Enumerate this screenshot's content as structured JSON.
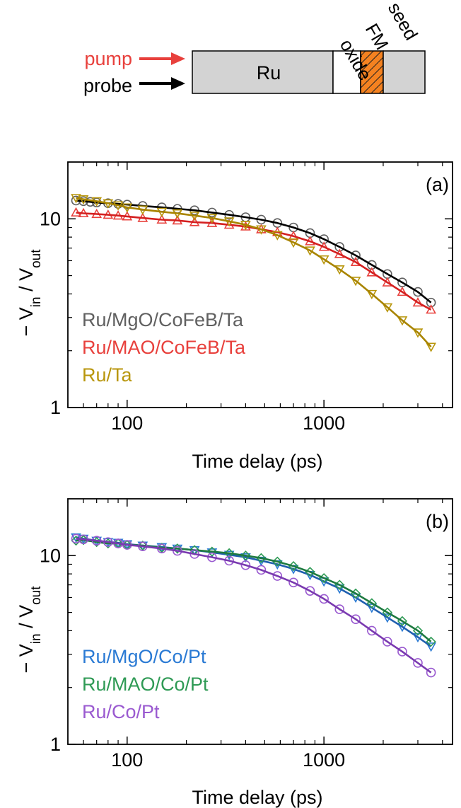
{
  "schematic": {
    "pump_label": "pump",
    "probe_label": "probe",
    "layer_ru": "Ru",
    "layer_oxide": "oxide",
    "layer_fm": "FM",
    "layer_seed": "seed",
    "pump_color": "#e8403c",
    "probe_color": "#000000",
    "fm_color": "#f58220"
  },
  "chart_data": [
    {
      "type": "scatter",
      "panel_label": "(a)",
      "xlabel": "Time delay (ps)",
      "ylabel_main": "− V",
      "ylabel_sub1": "in",
      "ylabel_mid": " / V",
      "ylabel_sub2": "out",
      "x_scale": "log",
      "y_scale": "log",
      "xlim": [
        50,
        4500
      ],
      "ylim": [
        1,
        20
      ],
      "x_ticks": [
        {
          "value": 100,
          "label": "100"
        },
        {
          "value": 1000,
          "label": "1000"
        }
      ],
      "y_ticks": [
        {
          "value": 1,
          "label": "1"
        },
        {
          "value": 10,
          "label": "10"
        }
      ],
      "legend_position": "bottom-left",
      "series": [
        {
          "name": "Ru/MgO/CoFeB/Ta",
          "color": "#606060",
          "fit_color": "#000000",
          "marker": "circle",
          "points": [
            [
              55,
              12.5
            ],
            [
              60,
              12.4
            ],
            [
              65,
              12.3
            ],
            [
              70,
              12.2
            ],
            [
              80,
              12.1
            ],
            [
              90,
              12.0
            ],
            [
              100,
              11.9
            ],
            [
              120,
              11.7
            ],
            [
              150,
              11.5
            ],
            [
              180,
              11.3
            ],
            [
              220,
              11.1
            ],
            [
              270,
              10.8
            ],
            [
              330,
              10.5
            ],
            [
              400,
              10.2
            ],
            [
              480,
              9.9
            ],
            [
              580,
              9.5
            ],
            [
              700,
              9.0
            ],
            [
              850,
              8.4
            ],
            [
              1000,
              7.8
            ],
            [
              1200,
              7.1
            ],
            [
              1450,
              6.4
            ],
            [
              1750,
              5.7
            ],
            [
              2100,
              5.1
            ],
            [
              2500,
              4.6
            ],
            [
              3000,
              4.1
            ],
            [
              3500,
              3.6
            ]
          ]
        },
        {
          "name": "Ru/MAO/CoFeB/Ta",
          "color": "#e8403c",
          "fit_color": "#d42020",
          "marker": "triangle-up",
          "points": [
            [
              55,
              10.8
            ],
            [
              60,
              10.7
            ],
            [
              70,
              10.6
            ],
            [
              80,
              10.5
            ],
            [
              90,
              10.4
            ],
            [
              100,
              10.3
            ],
            [
              120,
              10.1
            ],
            [
              150,
              9.9
            ],
            [
              180,
              9.8
            ],
            [
              220,
              9.6
            ],
            [
              270,
              9.5
            ],
            [
              330,
              9.3
            ],
            [
              400,
              9.1
            ],
            [
              480,
              8.8
            ],
            [
              580,
              8.5
            ],
            [
              700,
              8.1
            ],
            [
              850,
              7.6
            ],
            [
              1000,
              7.1
            ],
            [
              1200,
              6.5
            ],
            [
              1450,
              5.9
            ],
            [
              1750,
              5.2
            ],
            [
              2100,
              4.6
            ],
            [
              2500,
              4.1
            ],
            [
              3000,
              3.6
            ],
            [
              3500,
              3.3
            ]
          ]
        },
        {
          "name": "Ru/Ta",
          "color": "#b8960c",
          "fit_color": "#a88400",
          "marker": "triangle-down",
          "points": [
            [
              55,
              12.9
            ],
            [
              60,
              12.7
            ],
            [
              70,
              12.4
            ],
            [
              80,
              12.1
            ],
            [
              90,
              11.8
            ],
            [
              100,
              11.5
            ],
            [
              120,
              11.2
            ],
            [
              150,
              10.9
            ],
            [
              180,
              10.7
            ],
            [
              220,
              10.4
            ],
            [
              270,
              10.1
            ],
            [
              330,
              9.7
            ],
            [
              400,
              9.3
            ],
            [
              480,
              8.8
            ],
            [
              580,
              8.2
            ],
            [
              700,
              7.5
            ],
            [
              850,
              6.8
            ],
            [
              1000,
              6.1
            ],
            [
              1200,
              5.4
            ],
            [
              1450,
              4.7
            ],
            [
              1750,
              4.0
            ],
            [
              2100,
              3.4
            ],
            [
              2500,
              2.9
            ],
            [
              3000,
              2.5
            ],
            [
              3500,
              2.1
            ]
          ]
        }
      ]
    },
    {
      "type": "scatter",
      "panel_label": "(b)",
      "xlabel": "Time delay (ps)",
      "ylabel_main": "− V",
      "ylabel_sub1": "in",
      "ylabel_mid": " / V",
      "ylabel_sub2": "out",
      "x_scale": "log",
      "y_scale": "log",
      "xlim": [
        50,
        4500
      ],
      "ylim": [
        1,
        20
      ],
      "x_ticks": [
        {
          "value": 100,
          "label": "100"
        },
        {
          "value": 1000,
          "label": "1000"
        }
      ],
      "y_ticks": [
        {
          "value": 1,
          "label": "1"
        },
        {
          "value": 10,
          "label": "10"
        }
      ],
      "legend_position": "bottom-left",
      "series": [
        {
          "name": "Ru/MgO/Co/Pt",
          "color": "#2a7ad4",
          "fit_color": "#2060b0",
          "marker": "triangle-down",
          "points": [
            [
              55,
              12.5
            ],
            [
              60,
              12.3
            ],
            [
              70,
              12.0
            ],
            [
              80,
              11.8
            ],
            [
              90,
              11.7
            ],
            [
              100,
              11.5
            ],
            [
              120,
              11.3
            ],
            [
              150,
              11.1
            ],
            [
              180,
              10.9
            ],
            [
              220,
              10.7
            ],
            [
              270,
              10.4
            ],
            [
              330,
              10.1
            ],
            [
              400,
              9.8
            ],
            [
              480,
              9.4
            ],
            [
              580,
              9.0
            ],
            [
              700,
              8.5
            ],
            [
              850,
              7.9
            ],
            [
              1000,
              7.3
            ],
            [
              1200,
              6.7
            ],
            [
              1450,
              6.0
            ],
            [
              1750,
              5.3
            ],
            [
              2100,
              4.7
            ],
            [
              2500,
              4.2
            ],
            [
              3000,
              3.7
            ],
            [
              3500,
              3.3
            ]
          ]
        },
        {
          "name": "Ru/MAO/Co/Pt",
          "color": "#2f9a55",
          "fit_color": "#1e7a40",
          "marker": "diamond",
          "points": [
            [
              55,
              12.0
            ],
            [
              60,
              12.1
            ],
            [
              70,
              11.8
            ],
            [
              80,
              11.6
            ],
            [
              90,
              11.6
            ],
            [
              100,
              11.4
            ],
            [
              120,
              11.3
            ],
            [
              150,
              11.0
            ],
            [
              180,
              10.9
            ],
            [
              220,
              10.7
            ],
            [
              270,
              10.5
            ],
            [
              330,
              10.3
            ],
            [
              400,
              10.0
            ],
            [
              480,
              9.7
            ],
            [
              580,
              9.3
            ],
            [
              700,
              8.8
            ],
            [
              850,
              8.2
            ],
            [
              1000,
              7.6
            ],
            [
              1200,
              7.0
            ],
            [
              1450,
              6.3
            ],
            [
              1750,
              5.6
            ],
            [
              2100,
              5.0
            ],
            [
              2500,
              4.5
            ],
            [
              3000,
              4.0
            ],
            [
              3500,
              3.5
            ]
          ]
        },
        {
          "name": "Ru/Co/Pt",
          "color": "#9a5ad0",
          "fit_color": "#7a3ab0",
          "marker": "circle",
          "points": [
            [
              55,
              12.3
            ],
            [
              60,
              12.2
            ],
            [
              70,
              12.0
            ],
            [
              80,
              11.8
            ],
            [
              90,
              11.6
            ],
            [
              100,
              11.4
            ],
            [
              120,
              11.2
            ],
            [
              150,
              10.9
            ],
            [
              180,
              10.6
            ],
            [
              220,
              10.2
            ],
            [
              270,
              9.8
            ],
            [
              330,
              9.4
            ],
            [
              400,
              8.9
            ],
            [
              480,
              8.4
            ],
            [
              580,
              7.8
            ],
            [
              700,
              7.2
            ],
            [
              850,
              6.5
            ],
            [
              1000,
              5.9
            ],
            [
              1200,
              5.2
            ],
            [
              1450,
              4.6
            ],
            [
              1750,
              4.0
            ],
            [
              2100,
              3.5
            ],
            [
              2500,
              3.1
            ],
            [
              3000,
              2.7
            ],
            [
              3500,
              2.4
            ]
          ]
        }
      ]
    }
  ]
}
